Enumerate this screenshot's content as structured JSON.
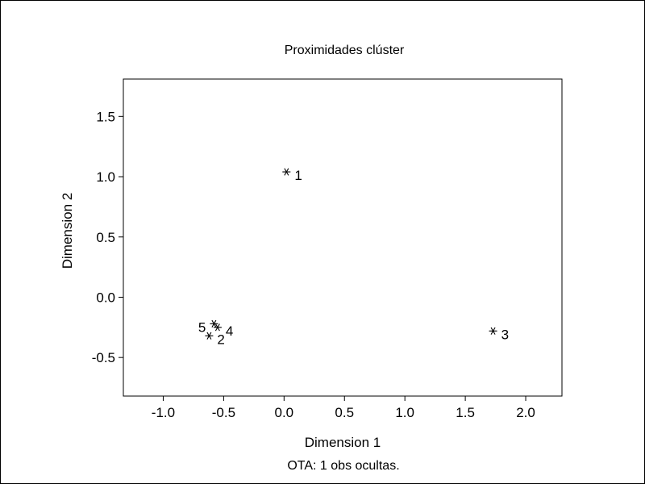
{
  "chart_data": {
    "type": "scatter",
    "title": "Proximidades clúster",
    "xlabel": "Dimension 1",
    "ylabel": "Dimension 2",
    "footnote": "OTA: 1 obs ocultas.",
    "xlim": [
      -1.33,
      2.3
    ],
    "ylim": [
      -0.82,
      1.81
    ],
    "xticks": [
      -1.0,
      -0.5,
      0.0,
      0.5,
      1.0,
      1.5,
      2.0
    ],
    "xtick_labels": [
      "-1.0",
      "-0.5",
      "0.0",
      "0.5",
      "1.0",
      "1.5",
      "2.0"
    ],
    "yticks": [
      -0.5,
      0.0,
      0.5,
      1.0,
      1.5
    ],
    "ytick_labels": [
      "-0.5",
      "0.0",
      "0.5",
      "1.0",
      "1.5"
    ],
    "grid": false,
    "marker": "asterisk",
    "points": [
      {
        "label": "1",
        "x": 0.02,
        "y": 1.04,
        "label_side": "right"
      },
      {
        "label": "2",
        "x": -0.62,
        "y": -0.32,
        "label_side": "right"
      },
      {
        "label": "3",
        "x": 1.73,
        "y": -0.28,
        "label_side": "right"
      },
      {
        "label": "4",
        "x": -0.55,
        "y": -0.25,
        "label_side": "right"
      },
      {
        "label": "5",
        "x": -0.58,
        "y": -0.22,
        "label_side": "left"
      }
    ]
  }
}
